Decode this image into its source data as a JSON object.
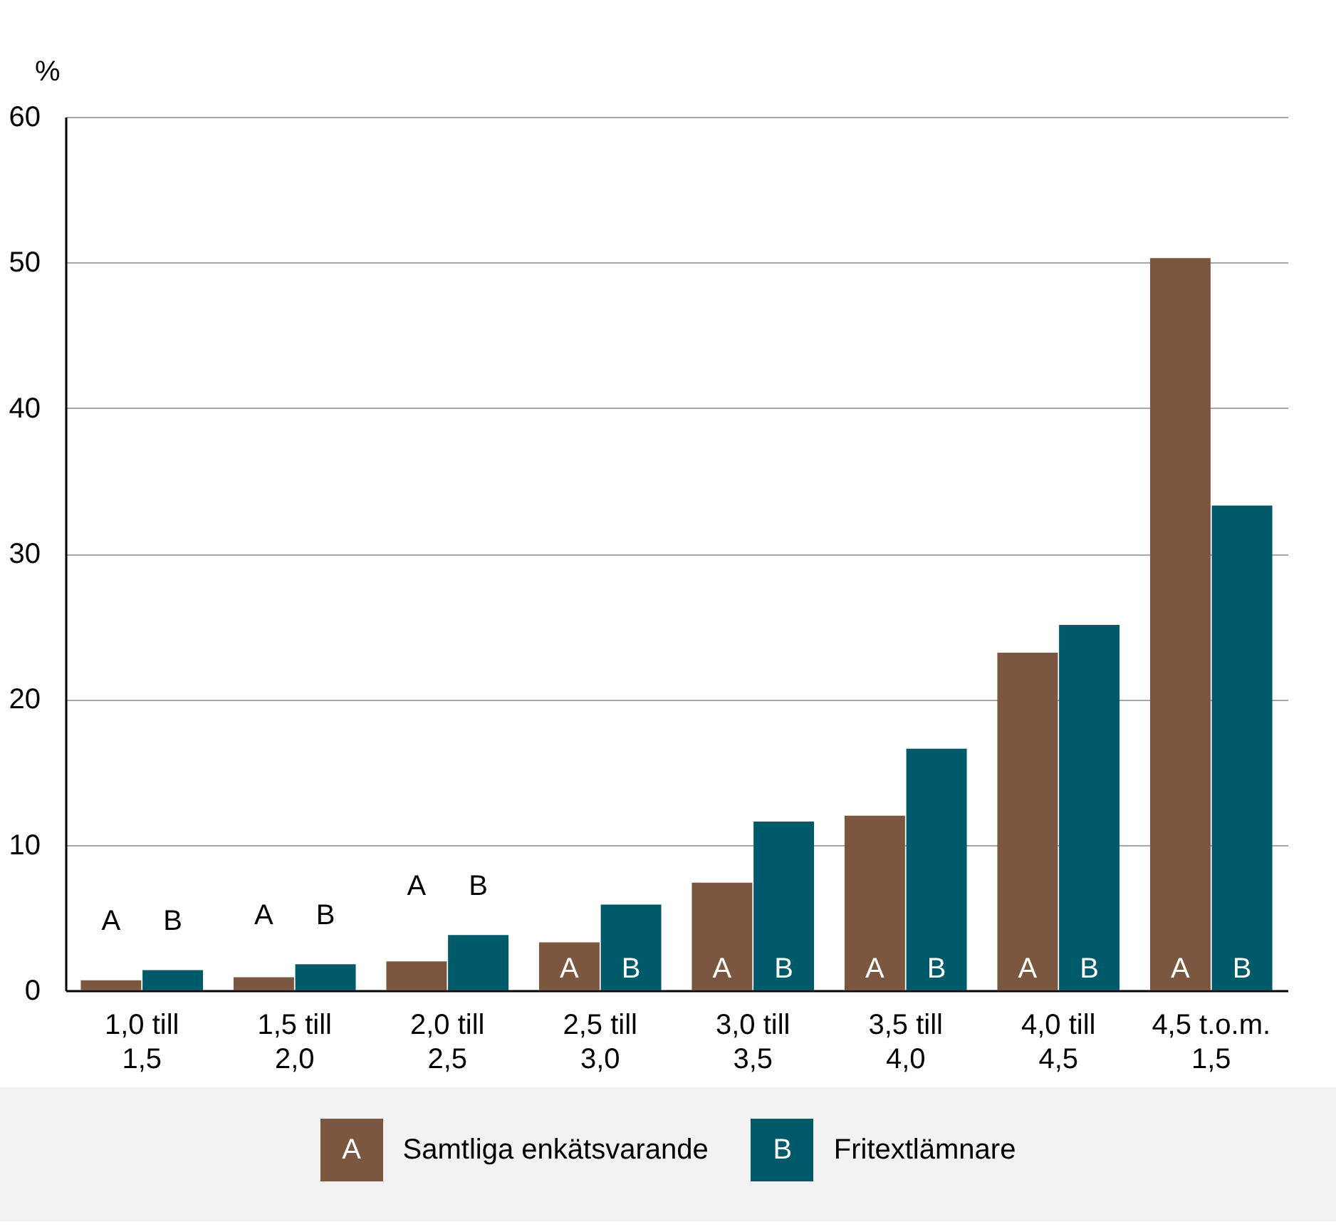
{
  "chart_data": {
    "type": "bar",
    "ylabel": "%",
    "categories": [
      "1,0 till 1,5",
      "1,5 till 2,0",
      "2,0 till 2,5",
      "2,5 till 3,0",
      "3,0 till 3,5",
      "3,5 till 4,0",
      "4,0 till 4,5",
      "4,5 t.o.m. 1,5"
    ],
    "series": [
      {
        "name": "Samtliga enkätsvarande",
        "color": "#7b573f",
        "values": [
          0.7,
          0.9,
          2.0,
          3.3,
          7.4,
          12.0,
          23.2,
          50.3
        ],
        "value_labels": [
          "A",
          "A",
          "A",
          "A",
          "A",
          "A",
          "A",
          "A"
        ]
      },
      {
        "name": "Fritextlämnare",
        "color": "#005a6a",
        "values": [
          1.4,
          1.8,
          3.8,
          5.9,
          11.6,
          16.6,
          25.1,
          33.3
        ],
        "value_labels": [
          "B",
          "B",
          "B",
          "B",
          "B",
          "B",
          "B",
          "B"
        ]
      }
    ],
    "ylim": [
      0,
      60
    ],
    "yticks": [
      0,
      10,
      20,
      30,
      40,
      50,
      60
    ],
    "grid": "y",
    "legend": "bottom"
  }
}
